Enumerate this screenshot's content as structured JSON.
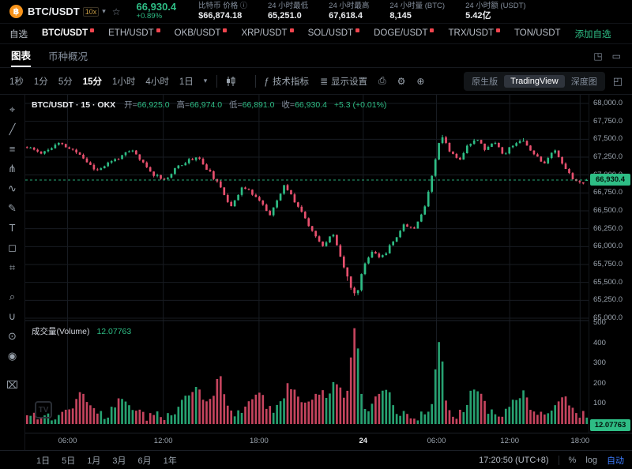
{
  "header": {
    "pair": "BTC/USDT",
    "leverage_badge": "10x",
    "price": "66,930.4",
    "change_pct": "+0.89%",
    "stats": [
      {
        "label": "比特币 价格",
        "value": "$66,874.18",
        "info_icon": true
      },
      {
        "label": "24 小时最低",
        "value": "65,251.0"
      },
      {
        "label": "24 小时最高",
        "value": "67,618.4"
      },
      {
        "label": "24 小时量 (BTC)",
        "value": "8,145"
      },
      {
        "label": "24 小时额 (USDT)",
        "value": "5.42亿"
      }
    ]
  },
  "icons": {
    "btc_logo": "฿",
    "chevron_down": "▾",
    "star": "☆",
    "info": "ⓘ",
    "fx": "ƒ",
    "display_settings": "≣",
    "camera": "⎙",
    "gear": "⚙",
    "compare": "⊕",
    "popout": "◳",
    "layout": "▭",
    "expand": "◰",
    "tv_watermark": "TV"
  },
  "pairs_bar": {
    "watchlist_label": "自选",
    "pairs": [
      {
        "name": "BTC/USDT",
        "hot": true,
        "active": true
      },
      {
        "name": "ETH/USDT",
        "hot": true,
        "active": false
      },
      {
        "name": "OKB/USDT",
        "hot": true,
        "active": false
      },
      {
        "name": "XRP/USDT",
        "hot": true,
        "active": false
      },
      {
        "name": "SOL/USDT",
        "hot": true,
        "active": false
      },
      {
        "name": "DOGE/USDT",
        "hot": true,
        "active": false
      },
      {
        "name": "TRX/USDT",
        "hot": true,
        "active": false
      },
      {
        "name": "TON/USDT",
        "hot": false,
        "active": false
      }
    ],
    "add_label": "添加自选"
  },
  "view_tabs": {
    "tabs": [
      {
        "label": "图表",
        "active": true
      },
      {
        "label": "币种概况",
        "active": false
      }
    ]
  },
  "toolbar": {
    "intervals": [
      {
        "label": "1秒",
        "active": false
      },
      {
        "label": "1分",
        "active": false
      },
      {
        "label": "5分",
        "active": false
      },
      {
        "label": "15分",
        "active": true
      },
      {
        "label": "1小时",
        "active": false
      },
      {
        "label": "4小时",
        "active": false
      },
      {
        "label": "1日",
        "active": false
      }
    ],
    "indicators_label": "技术指标",
    "display_label": "显示设置",
    "right_modes": [
      {
        "label": "原生版",
        "active": false
      },
      {
        "label": "TradingView",
        "active": true
      },
      {
        "label": "深度图",
        "active": false
      }
    ]
  },
  "sidebar_tools": [
    {
      "name": "crosshair-tool",
      "glyph": "⌖"
    },
    {
      "name": "trendline-tool",
      "glyph": "╱"
    },
    {
      "name": "fib-tool",
      "glyph": "≡"
    },
    {
      "name": "pitchfork-tool",
      "glyph": "⋔"
    },
    {
      "name": "patterns-tool",
      "glyph": "∿"
    },
    {
      "name": "brush-tool",
      "glyph": "✎"
    },
    {
      "name": "text-tool",
      "glyph": "T"
    },
    {
      "name": "shapes-tool",
      "glyph": "◻"
    },
    {
      "name": "measure-tool",
      "glyph": "⌗"
    },
    {
      "name": "zoom-in-tool",
      "glyph": "⌕"
    },
    {
      "name": "magnet-tool",
      "glyph": "∪"
    },
    {
      "name": "lock-tool",
      "glyph": "⊙"
    },
    {
      "name": "hide-tool",
      "glyph": "◉"
    },
    {
      "name": "delete-tool",
      "glyph": "⌧"
    }
  ],
  "legend": {
    "title": "BTC/USDT · 15 · OKX",
    "open_label": "开=",
    "open_value": "66,925.0",
    "high_label": "高=",
    "high_value": "66,974.0",
    "low_label": "低=",
    "low_value": "66,891.0",
    "close_label": "收=",
    "close_value": "66,930.4",
    "change_value": "+5.3 (+0.01%)"
  },
  "volume_legend": {
    "label": "成交量(Volume)",
    "value": "12.07763"
  },
  "axis": {
    "price_ticks": [
      "68,000.0",
      "67,750.0",
      "67,500.0",
      "67,250.0",
      "67,000.0",
      "66,750.0",
      "66,500.0",
      "66,250.0",
      "66,000.0",
      "65,750.0",
      "65,500.0",
      "65,250.0",
      "65,000.0"
    ],
    "volume_ticks": [
      "500",
      "400",
      "300",
      "200",
      "100"
    ],
    "time_ticks": [
      {
        "x": 0.075,
        "label": "06:00",
        "bold": false
      },
      {
        "x": 0.245,
        "label": "12:00",
        "bold": false
      },
      {
        "x": 0.415,
        "label": "18:00",
        "bold": false
      },
      {
        "x": 0.6,
        "label": "24",
        "bold": true
      },
      {
        "x": 0.73,
        "label": "06:00",
        "bold": false
      },
      {
        "x": 0.86,
        "label": "12:00",
        "bold": false
      },
      {
        "x": 0.985,
        "label": "18:00",
        "bold": false
      }
    ],
    "current_price_label": "66,930.4",
    "current_volume_label": "12.07763"
  },
  "bottom_bar": {
    "ranges": [
      "1日",
      "5日",
      "1月",
      "3月",
      "6月",
      "1年"
    ],
    "clock": "17:20:50 (UTC+8)",
    "percent_label": "%",
    "log_label": "log",
    "auto_label": "自动"
  },
  "chart_data": {
    "type": "candlestick+volume",
    "pair": "BTC/USDT",
    "interval": "15m",
    "exchange": "OKX",
    "price_axis_range": [
      65000,
      68000
    ],
    "volume_axis_range": [
      0,
      500
    ],
    "current_price": 66930.4,
    "ohlc_last": {
      "open": 66925.0,
      "high": 66974.0,
      "low": 66891.0,
      "close": 66930.4
    },
    "day_low": 65251.0,
    "day_high": 67618.4,
    "current_volume": 12.07763,
    "candle_count": 160,
    "price_path": [
      [
        0.0,
        67390
      ],
      [
        0.03,
        67310
      ],
      [
        0.06,
        67440
      ],
      [
        0.095,
        67300
      ],
      [
        0.125,
        67060
      ],
      [
        0.155,
        67200
      ],
      [
        0.19,
        67340
      ],
      [
        0.225,
        67020
      ],
      [
        0.25,
        66940
      ],
      [
        0.275,
        67150
      ],
      [
        0.305,
        67260
      ],
      [
        0.335,
        66960
      ],
      [
        0.365,
        66570
      ],
      [
        0.385,
        66830
      ],
      [
        0.41,
        66710
      ],
      [
        0.435,
        66430
      ],
      [
        0.46,
        66860
      ],
      [
        0.485,
        66560
      ],
      [
        0.51,
        66210
      ],
      [
        0.53,
        66010
      ],
      [
        0.545,
        66190
      ],
      [
        0.56,
        65860
      ],
      [
        0.578,
        65450
      ],
      [
        0.588,
        65330
      ],
      [
        0.602,
        65760
      ],
      [
        0.618,
        65960
      ],
      [
        0.632,
        65830
      ],
      [
        0.652,
        66060
      ],
      [
        0.672,
        66310
      ],
      [
        0.69,
        66260
      ],
      [
        0.71,
        66560
      ],
      [
        0.722,
        67010
      ],
      [
        0.737,
        67570
      ],
      [
        0.755,
        67310
      ],
      [
        0.77,
        67180
      ],
      [
        0.786,
        67430
      ],
      [
        0.8,
        67510
      ],
      [
        0.815,
        67360
      ],
      [
        0.83,
        67470
      ],
      [
        0.85,
        67290
      ],
      [
        0.865,
        67430
      ],
      [
        0.884,
        67490
      ],
      [
        0.9,
        67310
      ],
      [
        0.92,
        67160
      ],
      [
        0.94,
        67340
      ],
      [
        0.956,
        67110
      ],
      [
        0.97,
        66970
      ],
      [
        0.985,
        66880
      ],
      [
        1.0,
        66930
      ]
    ],
    "volume_spikes": [
      {
        "x": 0.1,
        "v": 110,
        "w": 0.02
      },
      {
        "x": 0.175,
        "v": 80,
        "w": 0.02
      },
      {
        "x": 0.3,
        "v": 140,
        "w": 0.025
      },
      {
        "x": 0.345,
        "v": 200,
        "w": 0.012
      },
      {
        "x": 0.41,
        "v": 120,
        "w": 0.02
      },
      {
        "x": 0.47,
        "v": 150,
        "w": 0.018
      },
      {
        "x": 0.52,
        "v": 120,
        "w": 0.02
      },
      {
        "x": 0.555,
        "v": 170,
        "w": 0.015
      },
      {
        "x": 0.585,
        "v": 440,
        "w": 0.01
      },
      {
        "x": 0.635,
        "v": 140,
        "w": 0.02
      },
      {
        "x": 0.735,
        "v": 390,
        "w": 0.01
      },
      {
        "x": 0.8,
        "v": 140,
        "w": 0.018
      },
      {
        "x": 0.88,
        "v": 110,
        "w": 0.02
      },
      {
        "x": 0.955,
        "v": 90,
        "w": 0.02
      }
    ],
    "colors": {
      "up": "#2ebd85",
      "down": "#e8506e",
      "grid": "#181c22",
      "current_line": "#2ebd85"
    }
  }
}
